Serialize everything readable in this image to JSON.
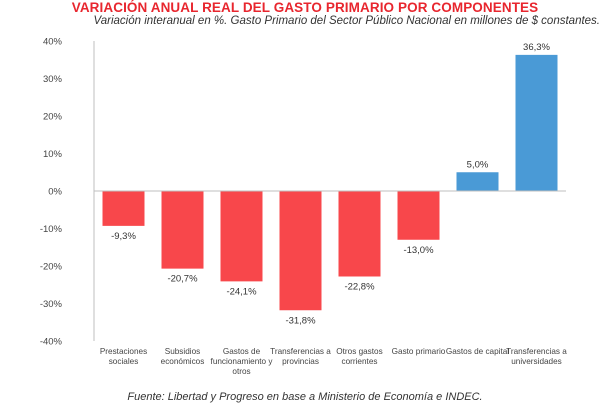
{
  "header": {
    "title": "VARIACIÓN ANUAL REAL DEL GASTO PRIMARIO POR COMPONENTES",
    "subtitle": "Variación interanual en %. Gasto Primario del Sector Público Nacional en millones de $ constantes."
  },
  "footer": {
    "source": "Fuente: Libertad y Progreso en base a Ministerio de Economía e INDEC."
  },
  "colors": {
    "negative": "#f8474b",
    "positive": "#4a9ad6",
    "title": "#e8262e"
  },
  "chart_data": {
    "type": "bar",
    "title": "VARIACIÓN ANUAL REAL DEL GASTO PRIMARIO POR COMPONENTES",
    "subtitle": "Variación interanual en %. Gasto Primario del Sector Público Nacional en millones de $ constantes.",
    "categories": [
      [
        "Prestaciones",
        "sociales"
      ],
      [
        "Subsidios",
        "económicos"
      ],
      [
        "Gastos de",
        "funcionamiento y",
        "otros"
      ],
      [
        "Transferencias a",
        "provincias"
      ],
      [
        "Otros gastos",
        "corrientes"
      ],
      [
        "Gasto primario"
      ],
      [
        "Gastos de capital"
      ],
      [
        "Transferencias a",
        "universidades"
      ]
    ],
    "values": [
      -9.3,
      -20.7,
      -24.1,
      -31.8,
      -22.8,
      -13.0,
      5.0,
      36.3
    ],
    "data_labels": [
      "-9,3%",
      "-20,7%",
      "-24,1%",
      "-31,8%",
      "-22,8%",
      "-13,0%",
      "5,0%",
      "36,3%"
    ],
    "yticks": [
      40,
      30,
      20,
      10,
      0,
      -10,
      -20,
      -30,
      -40
    ],
    "ytick_labels": [
      "40%",
      "30%",
      "20%",
      "10%",
      "0%",
      "-10%",
      "-20%",
      "-30%",
      "-40%"
    ],
    "ylim": [
      -40,
      40
    ],
    "xlabel": "",
    "ylabel": "",
    "grid": false,
    "legend": "none"
  }
}
